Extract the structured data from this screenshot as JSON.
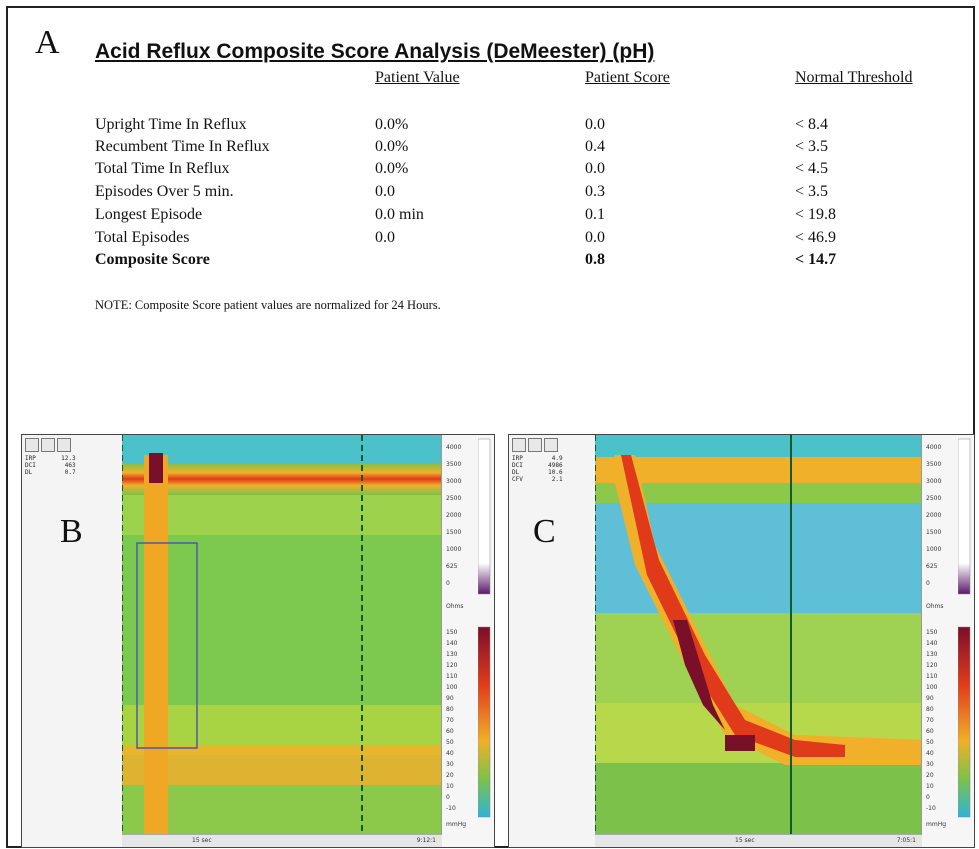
{
  "panel_a": {
    "letter": "A",
    "title": "Acid Reflux Composite Score Analysis (DeMeester) (pH)",
    "headers": {
      "patient_value": "Patient Value",
      "patient_score": "Patient Score",
      "normal_threshold": "Normal Threshold"
    },
    "rows": [
      {
        "label": "Upright Time In Reflux",
        "value": "0.0%",
        "score": "0.0",
        "threshold": "< 8.4"
      },
      {
        "label": "Recumbent Time In Reflux",
        "value": "0.0%",
        "score": "0.4",
        "threshold": "< 3.5"
      },
      {
        "label": "Total Time In Reflux",
        "value": "0.0%",
        "score": "0.0",
        "threshold": "< 4.5"
      },
      {
        "label": "Episodes Over 5 min.",
        "value": "0.0",
        "score": "0.3",
        "threshold": "< 3.5"
      },
      {
        "label": "Longest Episode",
        "value": "0.0 min",
        "score": "0.1",
        "threshold": "< 19.8"
      },
      {
        "label": "Total Episodes",
        "value": "0.0",
        "score": "0.0",
        "threshold": "< 46.9"
      },
      {
        "label": "Composite Score",
        "value": "",
        "score": "0.8",
        "threshold": "< 14.7"
      }
    ],
    "note": "NOTE:  Composite Score patient values are normalized for 24 Hours."
  },
  "panel_b": {
    "letter": "B",
    "metrics": "IRP       12.3\nDCI        463\nDL         0.7",
    "impedance_ticks": [
      "4000",
      "3500",
      "3000",
      "2500",
      "2000",
      "1500",
      "1000",
      "625",
      "0"
    ],
    "impedance_unit": "Ohms",
    "pressure_ticks": [
      "150",
      "140",
      "130",
      "120",
      "110",
      "100",
      "90",
      "80",
      "70",
      "60",
      "50",
      "40",
      "30",
      "20",
      "10",
      "0",
      "-10"
    ],
    "pressure_unit": "mmHg",
    "time_label": "15 sec",
    "time_stamp": "9:12:1"
  },
  "panel_c": {
    "letter": "C",
    "metrics": "IRP        4.9\nDCI       4986\nDL        10.6\nCFV        2.1",
    "impedance_ticks": [
      "4000",
      "3500",
      "3000",
      "2500",
      "2000",
      "1500",
      "1000",
      "625",
      "0"
    ],
    "impedance_unit": "Ohms",
    "pressure_ticks": [
      "150",
      "140",
      "130",
      "120",
      "110",
      "100",
      "90",
      "80",
      "70",
      "60",
      "50",
      "40",
      "30",
      "20",
      "10",
      "0",
      "-10"
    ],
    "pressure_unit": "mmHg",
    "time_label": "15 sec",
    "time_stamp": "7:05:1"
  },
  "colors": {
    "cold": "#2fb3d8",
    "cool": "#4bc1c9",
    "mid": "#7cc24a",
    "warm": "#f0b02a",
    "hot": "#e03a1a",
    "peak": "#7a0f2a"
  }
}
